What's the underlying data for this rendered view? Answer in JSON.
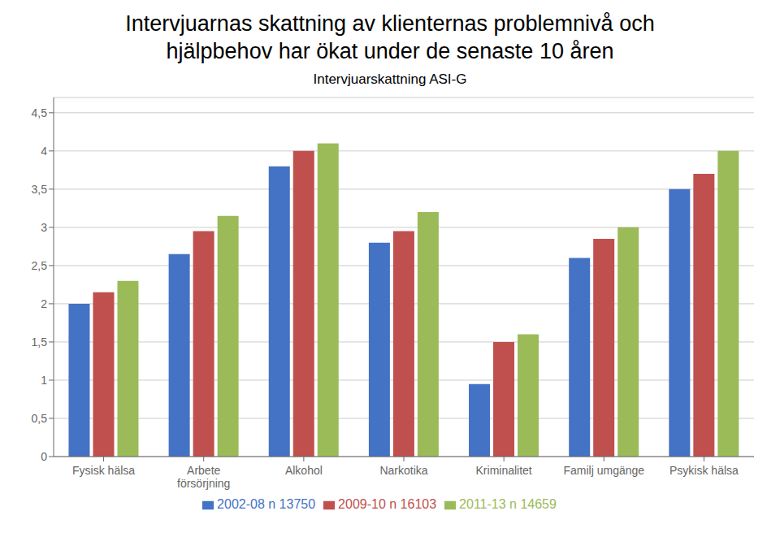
{
  "chart_data": {
    "type": "bar",
    "title": "Intervjuarnas skattning av klienternas problemnivå och\nhjälpbehov har ökat under de senaste 10 åren",
    "subtitle": "Intervjuarskattning ASI-G",
    "categories": [
      "Fysisk hälsa",
      "Arbete\nförsörjning",
      "Alkohol",
      "Narkotika",
      "Kriminalitet",
      "Familj umgänge",
      "Psykisk hälsa"
    ],
    "series": [
      {
        "name": "2002-08  n 13750",
        "color": "#4472C4",
        "values": [
          2.0,
          2.65,
          3.8,
          2.8,
          0.95,
          2.6,
          3.5
        ]
      },
      {
        "name": "2009-10  n 16103",
        "color": "#C0504D",
        "values": [
          2.15,
          2.95,
          4.0,
          2.95,
          1.5,
          2.85,
          3.7
        ]
      },
      {
        "name": "2011-13  n 14659",
        "color": "#9BBB59",
        "values": [
          2.3,
          3.15,
          4.1,
          3.2,
          1.6,
          3.0,
          4.0
        ]
      }
    ],
    "ylim": [
      0,
      4.7
    ],
    "yticks": [
      0,
      {
        "value": 0.5,
        "label": "0,5"
      },
      1,
      {
        "value": 1.5,
        "label": "1,5"
      },
      2,
      {
        "value": 2.5,
        "label": "2,5"
      },
      3,
      {
        "value": 3.5,
        "label": "3,5"
      },
      4,
      {
        "value": 4.5,
        "label": "4,5"
      }
    ],
    "grid": true,
    "legend": "bottom"
  }
}
